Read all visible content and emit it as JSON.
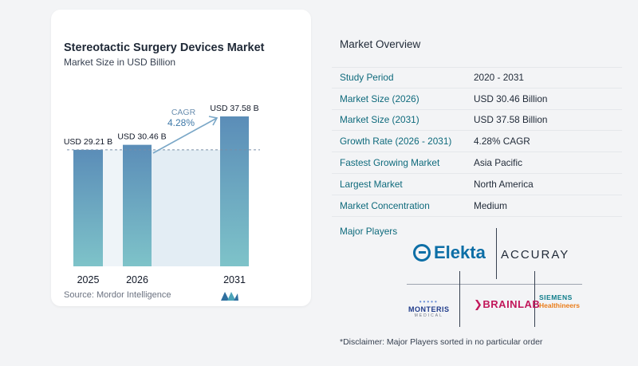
{
  "chart_data": {
    "type": "bar",
    "title": "Stereotactic Surgery Devices Market",
    "subtitle": "Market Size in USD Billion",
    "categories": [
      "2025",
      "2026",
      "2031"
    ],
    "values": [
      29.21,
      30.46,
      37.58
    ],
    "value_labels": [
      "USD 29.21 B",
      "USD 30.46 B",
      "USD 37.58 B"
    ],
    "cagr_label": "CAGR",
    "cagr_value": "4.28%",
    "ylim": [
      0,
      40
    ],
    "grid": false,
    "colors": {
      "bar_top": "#5b8db8",
      "bar_bottom": "#7ec3c9",
      "shade": "#e3edf4",
      "arrow": "#7aa7c7"
    }
  },
  "source": "Source:  Mordor Intelligence",
  "overview": {
    "title": "Market Overview",
    "rows": [
      {
        "label": "Study Period",
        "value": "2020 - 2031"
      },
      {
        "label": "Market Size (2026)",
        "value": "USD 30.46 Billion"
      },
      {
        "label": "Market Size (2031)",
        "value": "USD 37.58 Billion"
      },
      {
        "label": "Growth Rate (2026 - 2031)",
        "value": "4.28% CAGR"
      },
      {
        "label": "Fastest Growing Market",
        "value": "Asia Pacific"
      },
      {
        "label": "Largest Market",
        "value": "North America"
      },
      {
        "label": "Market Concentration",
        "value": "Medium"
      }
    ],
    "players_label": "Major Players",
    "players": {
      "elekta": "Elekta",
      "accuray": "ACCURAY",
      "monteris": "MONTERIS",
      "monteris_sub": "MEDICAL",
      "brainlab": "BRAINLAB",
      "siemens_1": "SIEMENS",
      "siemens_2": "Healthineers"
    },
    "disclaimer": "*Disclaimer: Major Players sorted in no particular order"
  }
}
